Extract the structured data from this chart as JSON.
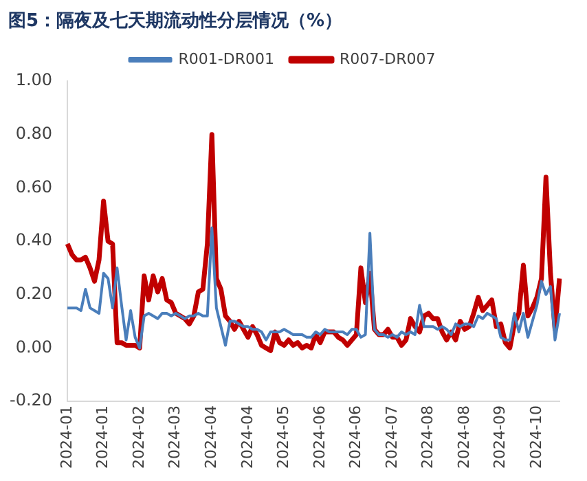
{
  "chart_data": {
    "type": "line",
    "title": "图5：隔夜及七天期流动性分层情况（%）",
    "categories": [
      "2024-01",
      null,
      null,
      null,
      null,
      null,
      null,
      null,
      "2024-01",
      null,
      null,
      null,
      null,
      null,
      null,
      null,
      "2024-02",
      null,
      null,
      null,
      null,
      null,
      null,
      null,
      "2024-03",
      null,
      null,
      null,
      null,
      null,
      null,
      null,
      "2024-04",
      null,
      null,
      null,
      null,
      null,
      null,
      null,
      "2024-04",
      null,
      null,
      null,
      null,
      null,
      null,
      null,
      "2024-05",
      null,
      null,
      null,
      null,
      null,
      null,
      null,
      "2024-06",
      null,
      null,
      null,
      null,
      null,
      null,
      null,
      "2024-06",
      null,
      null,
      null,
      null,
      null,
      null,
      null,
      "2024-07",
      null,
      null,
      null,
      null,
      null,
      null,
      null,
      "2024-08",
      null,
      null,
      null,
      null,
      null,
      null,
      null,
      "2024-08",
      null,
      null,
      null,
      null,
      null,
      null,
      null,
      "2024-09",
      null,
      null,
      null,
      null,
      null,
      null,
      null,
      "2024-10",
      null,
      null,
      null,
      null,
      null
    ],
    "series": [
      {
        "name": "R001-DR001",
        "color": "#4a7ebb",
        "values": [
          0.15,
          0.15,
          0.15,
          0.14,
          0.22,
          0.15,
          0.14,
          0.13,
          0.28,
          0.26,
          0.15,
          0.3,
          0.16,
          0.03,
          0.14,
          0.04,
          0.0,
          0.12,
          0.13,
          0.12,
          0.11,
          0.13,
          0.13,
          0.12,
          0.13,
          0.12,
          0.11,
          0.12,
          0.12,
          0.13,
          0.12,
          0.12,
          0.45,
          0.15,
          0.08,
          0.01,
          0.1,
          0.1,
          0.09,
          0.08,
          0.08,
          0.07,
          0.07,
          0.06,
          0.03,
          0.06,
          0.06,
          0.06,
          0.07,
          0.06,
          0.05,
          0.05,
          0.05,
          0.04,
          0.04,
          0.06,
          0.05,
          0.07,
          0.06,
          0.06,
          0.06,
          0.06,
          0.05,
          0.07,
          0.07,
          0.04,
          0.05,
          0.43,
          0.07,
          0.05,
          0.05,
          0.04,
          0.05,
          0.04,
          0.06,
          0.05,
          0.06,
          0.05,
          0.16,
          0.08,
          0.08,
          0.08,
          0.07,
          0.08,
          0.07,
          0.05,
          0.09,
          0.08,
          0.09,
          0.09,
          0.08,
          0.12,
          0.11,
          0.13,
          0.12,
          0.11,
          0.04,
          0.03,
          0.03,
          0.13,
          0.06,
          0.13,
          0.04,
          0.1,
          0.16,
          0.25,
          0.2,
          0.23,
          0.03,
          0.13
        ]
      },
      {
        "name": "R007-DR007",
        "color": "#c00000",
        "values": [
          0.39,
          0.35,
          0.33,
          0.33,
          0.34,
          0.3,
          0.25,
          0.33,
          0.55,
          0.4,
          0.39,
          0.02,
          0.02,
          0.01,
          0.01,
          0.01,
          0.0,
          0.27,
          0.18,
          0.27,
          0.21,
          0.26,
          0.18,
          0.17,
          0.13,
          0.12,
          0.11,
          0.09,
          0.12,
          0.21,
          0.22,
          0.39,
          0.8,
          0.26,
          0.22,
          0.12,
          0.1,
          0.07,
          0.1,
          0.07,
          0.04,
          0.08,
          0.05,
          0.01,
          0.0,
          -0.01,
          0.06,
          0.02,
          0.01,
          0.03,
          0.01,
          0.02,
          0.0,
          0.01,
          0.0,
          0.05,
          0.02,
          0.06,
          0.06,
          0.06,
          0.04,
          0.03,
          0.01,
          0.03,
          0.05,
          0.3,
          0.17,
          0.28,
          0.07,
          0.05,
          0.05,
          0.07,
          0.04,
          0.04,
          0.01,
          0.03,
          0.11,
          0.08,
          0.06,
          0.12,
          0.13,
          0.11,
          0.11,
          0.06,
          0.03,
          0.06,
          0.03,
          0.1,
          0.07,
          0.08,
          0.13,
          0.19,
          0.14,
          0.16,
          0.18,
          0.08,
          0.09,
          0.02,
          0.0,
          0.09,
          0.13,
          0.31,
          0.12,
          0.15,
          0.19,
          0.26,
          0.64,
          0.28,
          0.07,
          0.26
        ]
      }
    ],
    "ylim": [
      -0.2,
      1
    ],
    "yticks": [
      {
        "value": -0.2,
        "label": "-0.20"
      },
      {
        "value": 0,
        "label": "0.00"
      },
      {
        "value": 0.2,
        "label": "0.20"
      },
      {
        "value": 0.4,
        "label": "0.40"
      },
      {
        "value": 0.6,
        "label": "0.60"
      },
      {
        "value": 0.8,
        "label": "0.80"
      },
      {
        "value": 1,
        "label": "1.00"
      }
    ],
    "grid": false,
    "legend": "top",
    "marker": "none",
    "line_style": "solid"
  }
}
